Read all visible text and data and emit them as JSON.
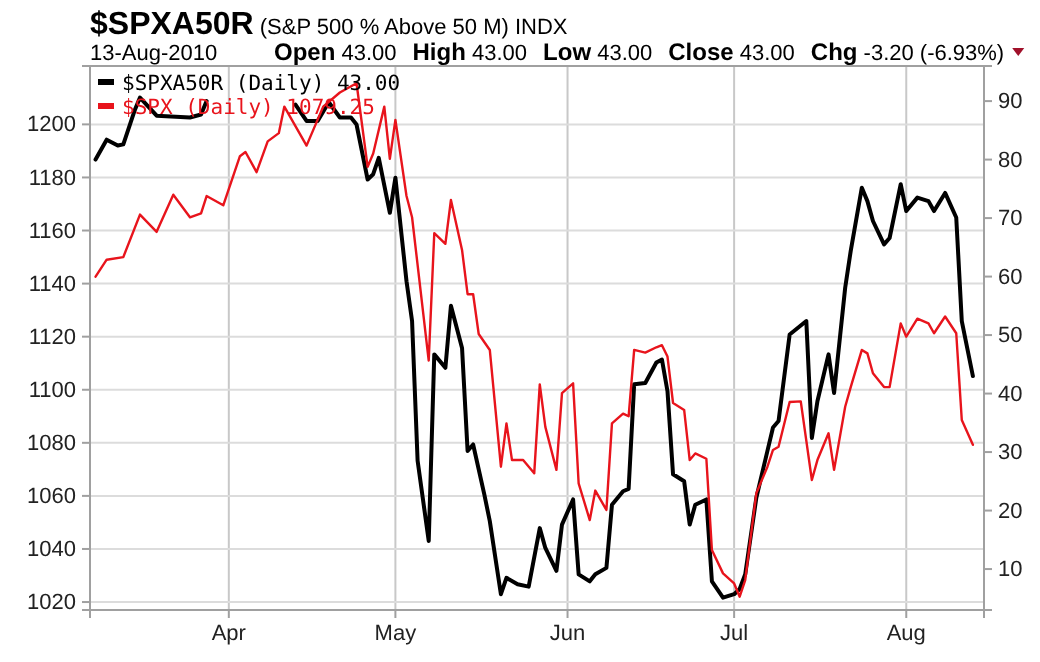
{
  "chart_data": {
    "type": "line",
    "title": "$SPXA50R (S&P 500 % Above 50 M) INDX",
    "subtitle": "13-Aug-2010",
    "annotations": [
      "Open 43.00",
      "High 43.00",
      "Low 43.00",
      "Close 43.00",
      "Chg -3.20 (-6.93%)"
    ],
    "xlim": [
      "2010-03-07",
      "2010-08-15"
    ],
    "xticks": [
      {
        "value": "2010-04-01",
        "label": "Apr"
      },
      {
        "value": "2010-05-01",
        "label": "May"
      },
      {
        "value": "2010-06-01",
        "label": "Jun"
      },
      {
        "value": "2010-07-01",
        "label": "Jul"
      },
      {
        "value": "2010-08-01",
        "label": "Aug"
      }
    ],
    "ylim": [
      1017,
      1222
    ],
    "yticks": [
      1020,
      1040,
      1060,
      1080,
      1100,
      1120,
      1140,
      1160,
      1180,
      1200
    ],
    "y2lim": [
      3,
      96
    ],
    "y2ticks": [
      10,
      20,
      30,
      40,
      50,
      60,
      70,
      80,
      90
    ],
    "grid": true,
    "legend": "top left",
    "series": [
      {
        "name": "$SPXA50R (Daily) 43.00",
        "color": "#000000",
        "axis": "y2",
        "x": [
          "2010-03-08",
          "2010-03-10",
          "2010-03-12",
          "2010-03-13",
          "2010-03-15",
          "2010-03-16",
          "2010-03-19",
          "2010-03-25",
          "2010-03-27",
          "2010-03-28",
          "2010-04-06",
          "2010-04-13",
          "2010-04-15",
          "2010-04-17",
          "2010-04-19",
          "2010-04-21",
          "2010-04-23",
          "2010-04-24",
          "2010-04-26",
          "2010-04-27",
          "2010-04-28",
          "2010-04-30",
          "2010-05-01",
          "2010-05-03",
          "2010-05-04",
          "2010-05-05",
          "2010-05-07",
          "2010-05-08",
          "2010-05-10",
          "2010-05-11",
          "2010-05-13",
          "2010-05-14",
          "2010-05-15",
          "2010-05-17",
          "2010-05-18",
          "2010-05-20",
          "2010-05-21",
          "2010-05-23",
          "2010-05-25",
          "2010-05-27",
          "2010-05-28",
          "2010-05-30",
          "2010-05-31",
          "2010-06-02",
          "2010-06-03",
          "2010-06-05",
          "2010-06-06",
          "2010-06-08",
          "2010-06-09",
          "2010-06-11",
          "2010-06-12",
          "2010-06-13",
          "2010-06-15",
          "2010-06-17",
          "2010-06-18",
          "2010-06-19",
          "2010-06-20",
          "2010-06-22",
          "2010-06-23",
          "2010-06-24",
          "2010-06-26",
          "2010-06-27",
          "2010-06-29",
          "2010-07-01",
          "2010-07-02",
          "2010-07-03",
          "2010-07-05",
          "2010-07-07",
          "2010-07-08",
          "2010-07-09",
          "2010-07-11",
          "2010-07-14",
          "2010-07-15",
          "2010-07-16",
          "2010-07-18",
          "2010-07-19",
          "2010-07-21",
          "2010-07-22",
          "2010-07-24",
          "2010-07-25",
          "2010-07-26",
          "2010-07-28",
          "2010-07-29",
          "2010-07-31",
          "2010-08-01",
          "2010-08-03",
          "2010-08-05",
          "2010-08-06",
          "2010-08-08",
          "2010-08-10",
          "2010-08-11",
          "2010-08-13"
        ],
        "values": [
          80,
          83.4,
          82.4,
          82.6,
          88.3,
          90.6,
          87.5,
          87.2,
          87.7,
          90,
          null,
          89.4,
          86.6,
          86.6,
          89.8,
          87.2,
          87.2,
          86,
          76.6,
          77.5,
          80.3,
          70.9,
          76.9,
          59.2,
          52.4,
          28.5,
          14.8,
          46.7,
          44.4,
          55,
          47.8,
          30.2,
          31.3,
          22.8,
          18.2,
          5.7,
          8.5,
          7.4,
          7,
          17,
          13.6,
          9.7,
          17.6,
          21.9,
          9.1,
          7.9,
          9.1,
          10.2,
          21,
          23.3,
          23.7,
          41.6,
          41.8,
          45.3,
          45.8,
          40.4,
          26.2,
          25,
          17.6,
          21,
          21.9,
          7.9,
          5.1,
          5.7,
          6.6,
          9.1,
          22.2,
          30.2,
          34.2,
          35.3,
          50.1,
          52.4,
          32.4,
          38.7,
          46.7,
          40.1,
          58.1,
          64.4,
          75.2,
          72.9,
          69.5,
          65.5,
          66.6,
          75.8,
          71.2,
          73.5,
          72.9,
          71.2,
          74.3,
          70.1,
          52.4,
          43
        ]
      },
      {
        "name": "$SPX (Daily) 1079.25",
        "color": "#e8141c",
        "x": [
          "2010-03-08",
          "2010-03-10",
          "2010-03-13",
          "2010-03-16",
          "2010-03-19",
          "2010-03-22",
          "2010-03-25",
          "2010-03-27",
          "2010-03-28",
          "2010-03-31",
          "2010-04-03",
          "2010-04-04",
          "2010-04-06",
          "2010-04-08",
          "2010-04-10",
          "2010-04-11",
          "2010-04-15",
          "2010-04-18",
          "2010-04-21",
          "2010-04-24",
          "2010-04-26",
          "2010-04-27",
          "2010-04-29",
          "2010-04-30",
          "2010-05-01",
          "2010-05-03",
          "2010-05-04",
          "2010-05-07",
          "2010-05-08",
          "2010-05-10",
          "2010-05-11",
          "2010-05-13",
          "2010-05-14",
          "2010-05-15",
          "2010-05-16",
          "2010-05-18",
          "2010-05-20",
          "2010-05-21",
          "2010-05-22",
          "2010-05-24",
          "2010-05-26",
          "2010-05-27",
          "2010-05-28",
          "2010-05-30",
          "2010-05-31",
          "2010-06-02",
          "2010-06-03",
          "2010-06-05",
          "2010-06-06",
          "2010-06-08",
          "2010-06-09",
          "2010-06-11",
          "2010-06-12",
          "2010-06-13",
          "2010-06-15",
          "2010-06-17",
          "2010-06-18",
          "2010-06-19",
          "2010-06-20",
          "2010-06-22",
          "2010-06-23",
          "2010-06-24",
          "2010-06-26",
          "2010-06-27",
          "2010-06-29",
          "2010-07-01",
          "2010-07-02",
          "2010-07-03",
          "2010-07-05",
          "2010-07-07",
          "2010-07-08",
          "2010-07-09",
          "2010-07-11",
          "2010-07-13",
          "2010-07-15",
          "2010-07-16",
          "2010-07-18",
          "2010-07-19",
          "2010-07-21",
          "2010-07-22",
          "2010-07-24",
          "2010-07-25",
          "2010-07-26",
          "2010-07-28",
          "2010-07-29",
          "2010-07-31",
          "2010-08-01",
          "2010-08-03",
          "2010-08-05",
          "2010-08-06",
          "2010-08-08",
          "2010-08-10",
          "2010-08-11",
          "2010-08-13"
        ],
        "values": [
          1142.6,
          1149,
          1150,
          1166,
          1159.5,
          1173.5,
          1165,
          1166.5,
          1173,
          1169.5,
          1188,
          1189.6,
          1182,
          1193.6,
          1196.7,
          1206.7,
          1192,
          1206.7,
          1212,
          1215.5,
          1184,
          1189,
          1206.7,
          1187,
          1201.7,
          1173,
          1165,
          1111,
          1159,
          1155,
          1171.5,
          1152.7,
          1136,
          1136,
          1121,
          1115,
          1071,
          1087.3,
          1073.5,
          1073.5,
          1068.5,
          1102,
          1086,
          1069.8,
          1098.7,
          1102.4,
          1064.7,
          1050.9,
          1062,
          1054.7,
          1087.3,
          1091,
          1090,
          1115,
          1114,
          1116,
          1116.8,
          1112.5,
          1095,
          1092.4,
          1073.5,
          1076,
          1074,
          1039.6,
          1030.8,
          1027,
          1022,
          1028.3,
          1061,
          1071,
          1077.3,
          1078.5,
          1095.4,
          1095.6,
          1066,
          1073.5,
          1083.6,
          1069.8,
          1093.6,
          1101,
          1115,
          1113.7,
          1106.2,
          1101,
          1101,
          1125,
          1120,
          1126.8,
          1125,
          1121.3,
          1127.6,
          1121.3,
          1088.6,
          1079.25
        ]
      }
    ]
  }
}
